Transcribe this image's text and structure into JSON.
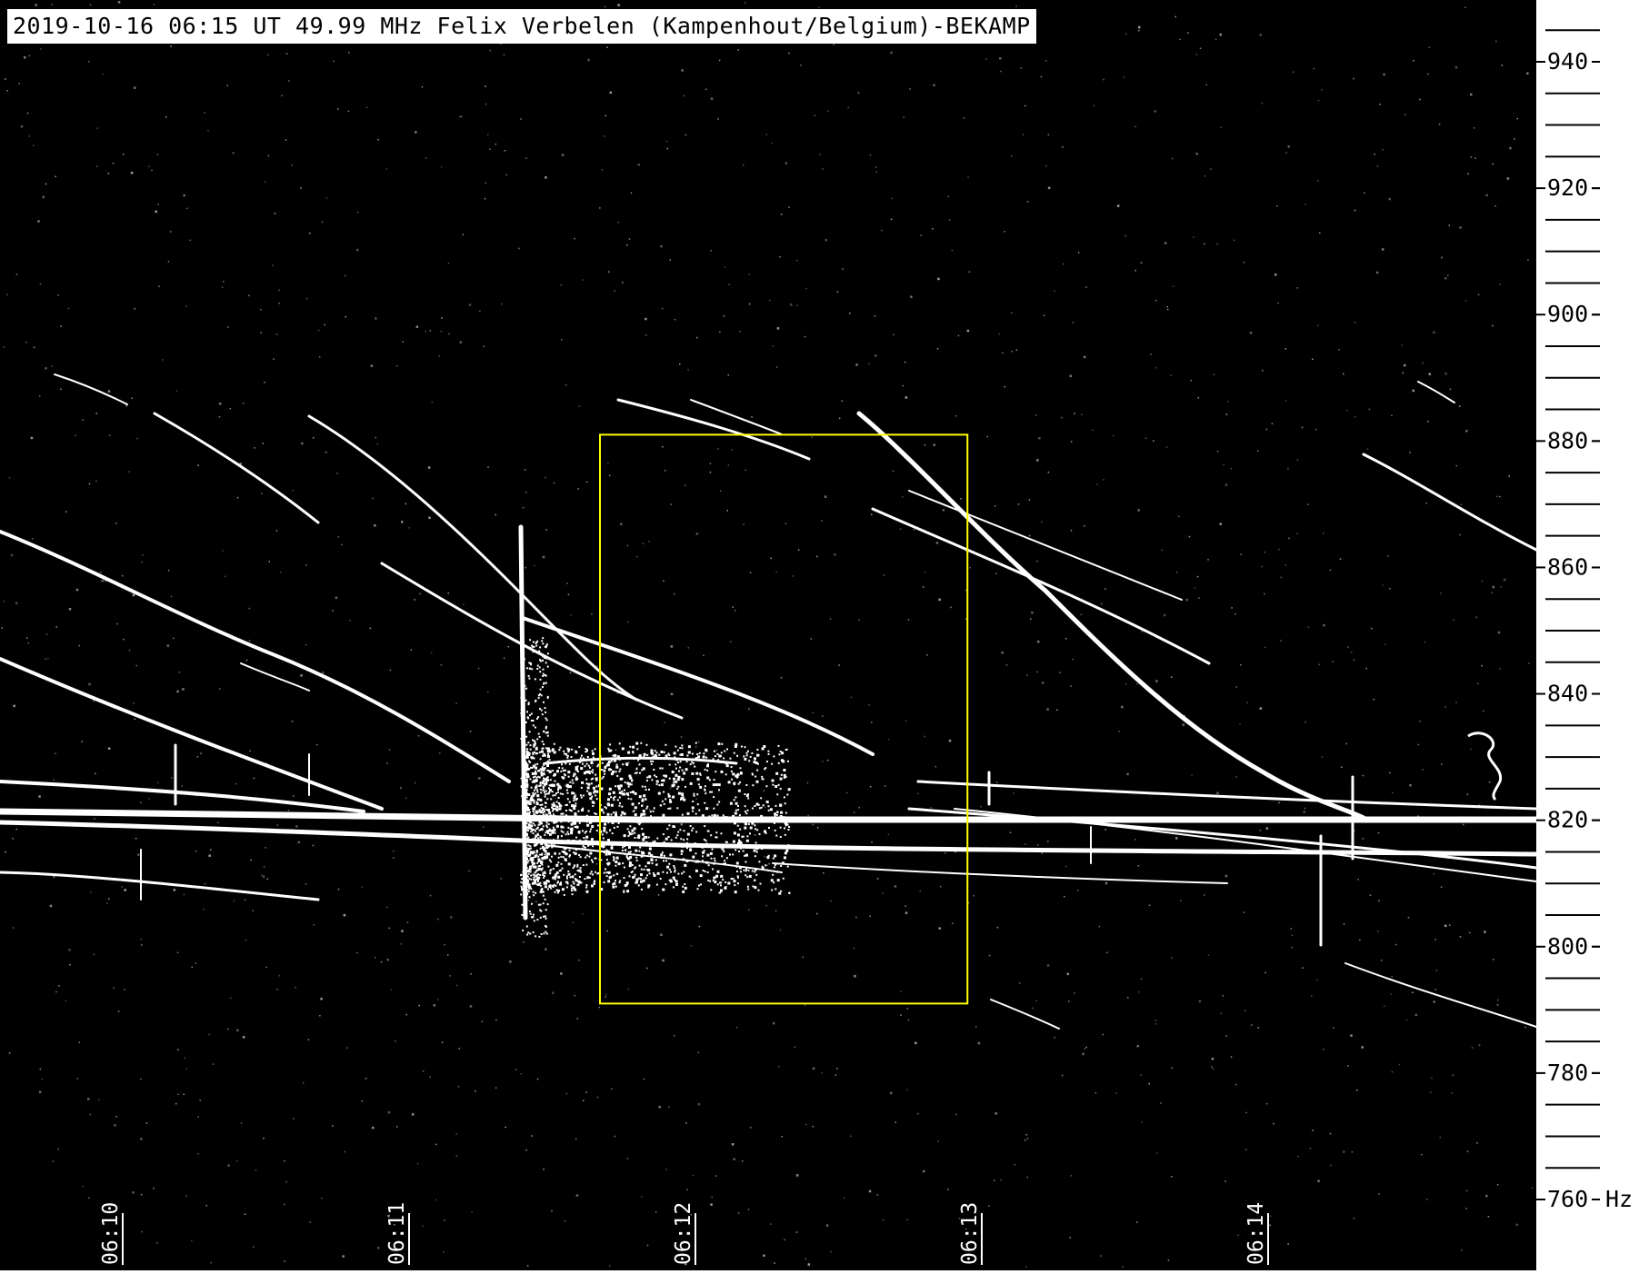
{
  "header": {
    "title": "2019-10-16 06:15 UT 49.99 MHz Felix Verbelen (Kampenhout/Belgium)-BEKAMP"
  },
  "frequency_axis": {
    "unit": "Hz",
    "labels": [
      "940",
      "920",
      "900",
      "880",
      "860",
      "840",
      "820",
      "800",
      "780",
      "760"
    ],
    "min_hz": 752,
    "max_hz": 952
  },
  "time_axis": {
    "labels": [
      "06:10",
      "06:11",
      "06:12",
      "06:13",
      "06:14"
    ]
  },
  "highlight_box": {
    "color": "#ffff00",
    "start_time": "06:11:40",
    "end_time": "06:12:57",
    "top_hz": 881,
    "bottom_hz": 791
  },
  "colors": {
    "background": "#000000",
    "signal": "#ffffff",
    "axis_panel": "#ffffff",
    "highlight": "#ffff00"
  }
}
